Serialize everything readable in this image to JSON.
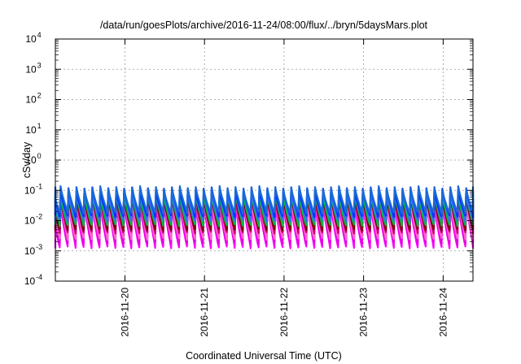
{
  "chart_data": {
    "type": "line",
    "title": "/data/run/goesPlots/archive/2016-11-24/08:00/flux/../bryn/5daysMars.plot",
    "xlabel": "Coordinated Universal Time (UTC)",
    "ylabel": "cSv/day",
    "yscale": "log",
    "ylim": [
      0.0001,
      10000
    ],
    "y_ticks": [
      {
        "value": 0.0001,
        "base": "10",
        "exp": "-4"
      },
      {
        "value": 0.001,
        "base": "10",
        "exp": "-3"
      },
      {
        "value": 0.01,
        "base": "10",
        "exp": "-2"
      },
      {
        "value": 0.1,
        "base": "10",
        "exp": "-1"
      },
      {
        "value": 1,
        "base": "10",
        "exp": "0"
      },
      {
        "value": 10,
        "base": "10",
        "exp": "1"
      },
      {
        "value": 100,
        "base": "10",
        "exp": "2"
      },
      {
        "value": 1000,
        "base": "10",
        "exp": "3"
      },
      {
        "value": 10000,
        "base": "10",
        "exp": "4"
      }
    ],
    "xlim": [
      "2016-11-19 03:00",
      "2016-11-24 09:00"
    ],
    "x_ticks": [
      "2016-11-20",
      "2016-11-21",
      "2016-11-22",
      "2016-11-23",
      "2016-11-24"
    ],
    "grid": true,
    "cycle_hours": 2.4,
    "series": [
      {
        "color": "#ff00ff",
        "peak": 0.04,
        "trough": 0.0013
      },
      {
        "color": "#e000e0",
        "peak": 0.045,
        "trough": 0.0018
      },
      {
        "color": "#ff66cc",
        "peak": 0.05,
        "trough": 0.0025
      },
      {
        "color": "#cc0077",
        "peak": 0.06,
        "trough": 0.004
      },
      {
        "color": "#7a0000",
        "peak": 0.07,
        "trough": 0.005
      },
      {
        "color": "#00e5e5",
        "peak": 0.09,
        "trough": 0.008
      },
      {
        "color": "#00bb44",
        "peak": 0.08,
        "trough": 0.007
      },
      {
        "color": "#3b6fff",
        "peak": 0.1,
        "trough": 0.01
      },
      {
        "color": "#0033ff",
        "peak": 0.11,
        "trough": 0.014
      },
      {
        "color": "#1a6ad8",
        "peak": 0.12,
        "trough": 0.018
      }
    ]
  }
}
